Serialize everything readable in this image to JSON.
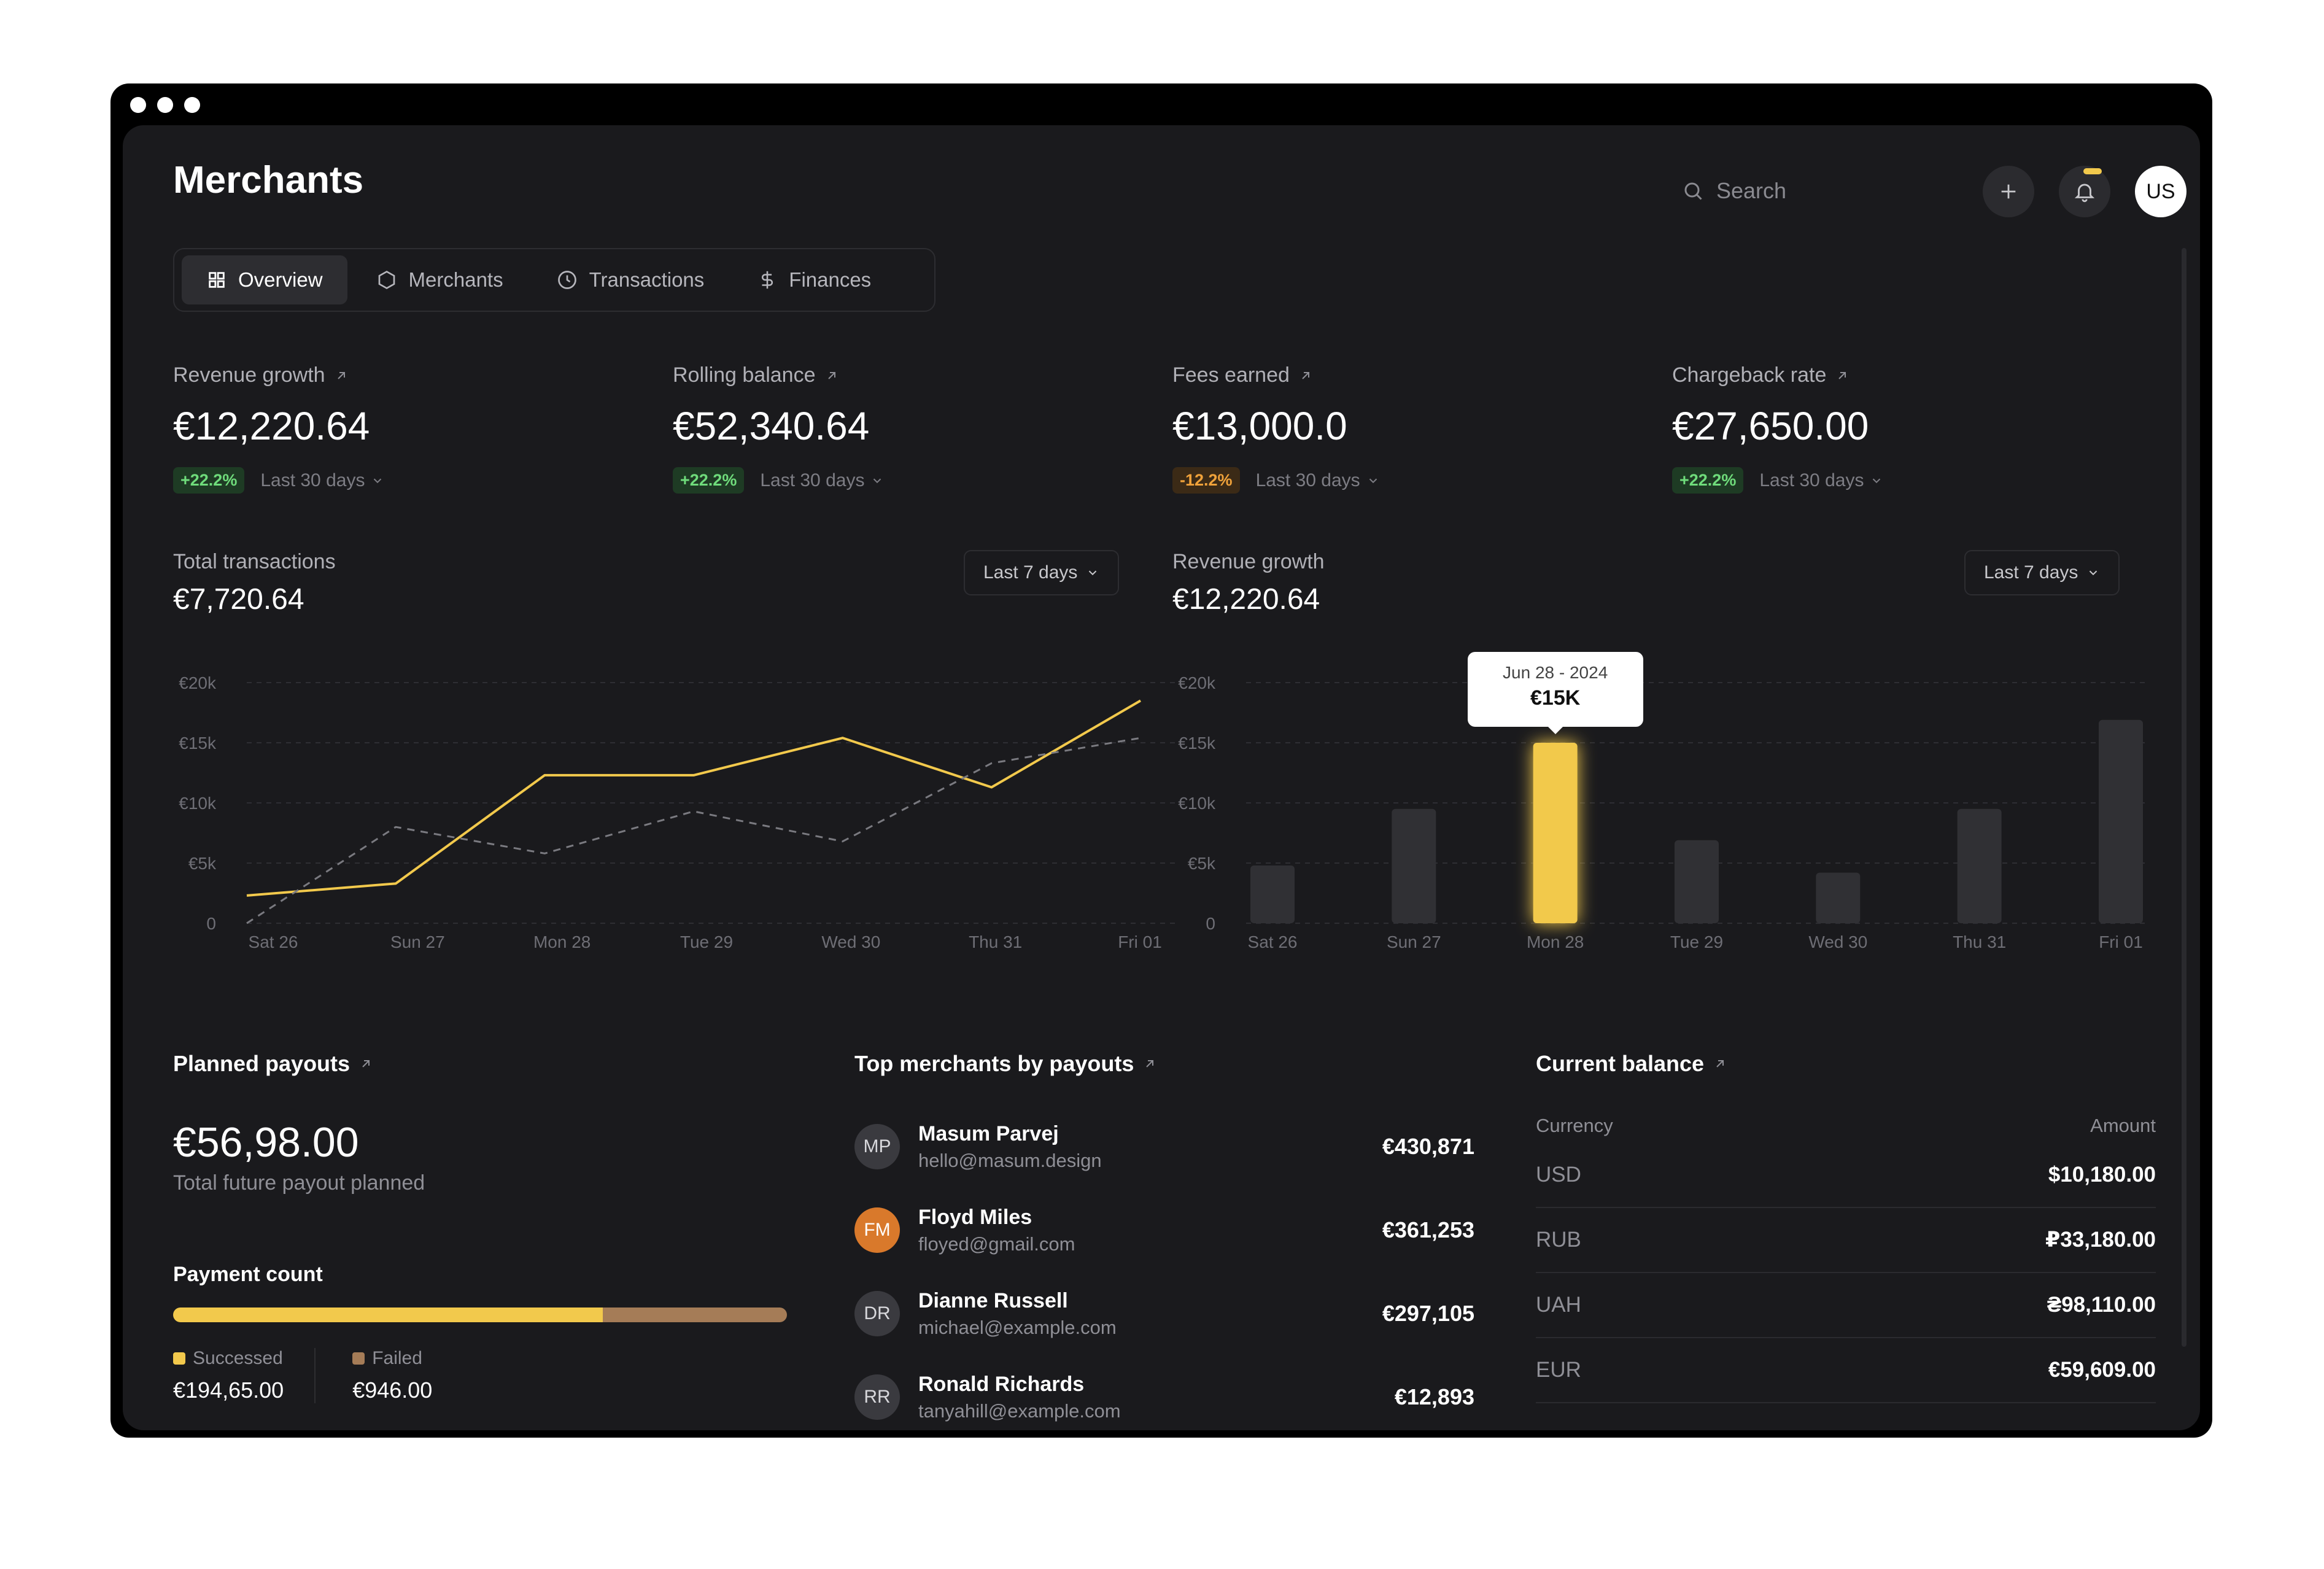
{
  "header": {
    "title": "Merchants",
    "search_placeholder": "Search",
    "avatar_initials": "US"
  },
  "tabs": [
    {
      "label": "Overview",
      "icon": "grid-icon",
      "active": true
    },
    {
      "label": "Merchants",
      "icon": "hexagon-icon",
      "active": false
    },
    {
      "label": "Transactions",
      "icon": "clock-icon",
      "active": false
    },
    {
      "label": "Finances",
      "icon": "dollar-icon",
      "active": false
    }
  ],
  "kpis": [
    {
      "label": "Revenue growth",
      "value": "€12,220.64",
      "change": "+22.2%",
      "trend": "positive",
      "period": "Last 30 days"
    },
    {
      "label": "Rolling balance",
      "value": "€52,340.64",
      "change": "+22.2%",
      "trend": "positive",
      "period": "Last 30 days"
    },
    {
      "label": "Fees earned",
      "value": "€13,000.0",
      "change": "-12.2%",
      "trend": "negative",
      "period": "Last 30 days"
    },
    {
      "label": "Chargeback rate",
      "value": "€27,650.00",
      "change": "+22.2%",
      "trend": "positive",
      "period": "Last 30 days"
    }
  ],
  "charts": {
    "transactions": {
      "label": "Total transactions",
      "value": "€7,720.64",
      "period": "Last 7 days"
    },
    "revenue": {
      "label": "Revenue growth",
      "value": "€12,220.64",
      "period": "Last 7 days",
      "tooltip_date": "Jun 28 - 2024",
      "tooltip_value": "€15K"
    }
  },
  "chart_data": [
    {
      "type": "line",
      "categories": [
        "Sat 26",
        "Sun 27",
        "Mon 28",
        "Tue 29",
        "Wed 30",
        "Thu 31",
        "Fri 01"
      ],
      "y_ticks": [
        "€20k",
        "€15k",
        "€10k",
        "€5k",
        "0"
      ],
      "ylim": [
        0,
        20000
      ],
      "grid": true,
      "series": [
        {
          "color": "#f2c94c",
          "style": "solid",
          "x": [
            0,
            1,
            2,
            3,
            4,
            5,
            6
          ],
          "values": [
            2300,
            3300,
            12300,
            12300,
            15400,
            11300,
            18500
          ]
        },
        {
          "color": "#7a7a80",
          "style": "dashed",
          "x": [
            0,
            1,
            2,
            3,
            4,
            5,
            6
          ],
          "values": [
            0,
            8000,
            5800,
            9300,
            6800,
            13300,
            15400
          ]
        }
      ]
    },
    {
      "type": "bar",
      "categories": [
        "Sat 26",
        "Sun 27",
        "Mon 28",
        "Tue 29",
        "Wed 30",
        "Thu 31",
        "Fri 01"
      ],
      "y_ticks": [
        "€20k",
        "€15k",
        "€10k",
        "€5k",
        "0"
      ],
      "ylim": [
        0,
        20000
      ],
      "grid": true,
      "values": [
        4800,
        9500,
        15000,
        6900,
        4200,
        9500,
        16900
      ],
      "highlight_index": 2,
      "colors": {
        "bar": "#303034",
        "highlight": "#f2c94c"
      }
    }
  ],
  "payouts": {
    "title": "Planned payouts",
    "value": "€56,98.00",
    "caption": "Total future payout planned",
    "payment_count_label": "Payment count",
    "success_fraction": 0.7,
    "successed_label": "Successed",
    "successed_value": "€194,65.00",
    "failed_label": "Failed",
    "failed_value": "€946.00",
    "colors": {
      "success": "#f2c94c",
      "failed": "#a57c57"
    }
  },
  "merchants": {
    "title": "Top merchants by payouts",
    "items": [
      {
        "initials": "MP",
        "name": "Masum Parvej",
        "email": "hello@masum.design",
        "amount": "€430,871",
        "avatar_color": "#3a3a3f"
      },
      {
        "initials": "FM",
        "name": "Floyd Miles",
        "email": "floyed@gmail.com",
        "amount": "€361,253",
        "avatar_color": "#d9792b"
      },
      {
        "initials": "DR",
        "name": "Dianne Russell",
        "email": "michael@example.com",
        "amount": "€297,105",
        "avatar_color": "#3a3a3f"
      },
      {
        "initials": "RR",
        "name": "Ronald Richards",
        "email": "tanyahill@example.com",
        "amount": "€12,893",
        "avatar_color": "#3a3a3f"
      }
    ]
  },
  "balance": {
    "title": "Current balance",
    "col_currency": "Currency",
    "col_amount": "Amount",
    "rows": [
      {
        "currency": "USD",
        "amount": "$10,180.00"
      },
      {
        "currency": "RUB",
        "amount": "₽33,180.00"
      },
      {
        "currency": "UAH",
        "amount": "₴98,110.00"
      },
      {
        "currency": "EUR",
        "amount": "€59,609.00"
      }
    ]
  }
}
